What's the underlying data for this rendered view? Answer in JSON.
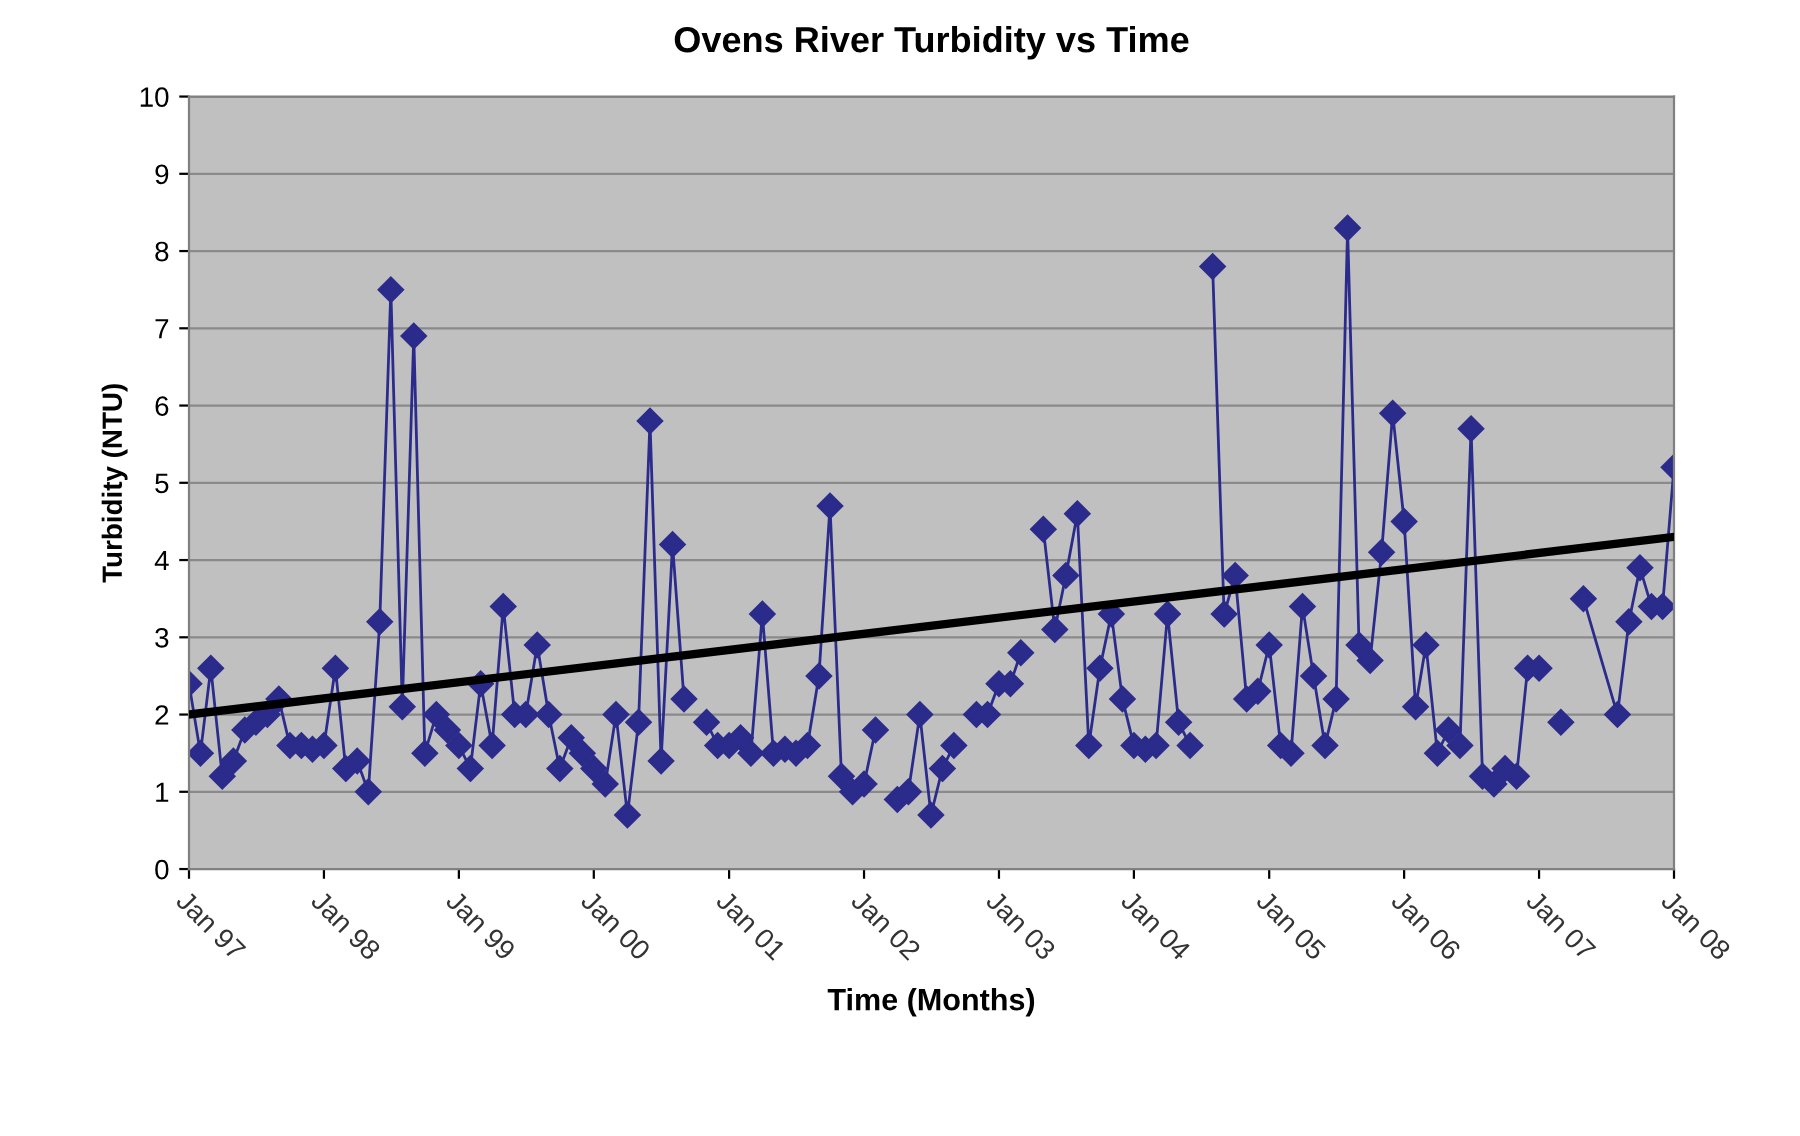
{
  "chart_data": {
    "type": "line",
    "title": "Ovens River Turbidity vs Time",
    "xlabel": "Time (Months)",
    "ylabel": "Turbidity (NTU)",
    "xlim": [
      "1997-01",
      "2008-01"
    ],
    "xticks": [
      {
        "value": "1997-01",
        "label": "Jan 97"
      },
      {
        "value": "1998-01",
        "label": "Jan 98"
      },
      {
        "value": "1999-01",
        "label": "Jan 99"
      },
      {
        "value": "2000-01",
        "label": "Jan 00"
      },
      {
        "value": "2001-01",
        "label": "Jan 01"
      },
      {
        "value": "2002-01",
        "label": "Jan 02"
      },
      {
        "value": "2003-01",
        "label": "Jan 03"
      },
      {
        "value": "2004-01",
        "label": "Jan 04"
      },
      {
        "value": "2005-01",
        "label": "Jan 05"
      },
      {
        "value": "2006-01",
        "label": "Jan 06"
      },
      {
        "value": "2007-01",
        "label": "Jan 07"
      },
      {
        "value": "2008-01",
        "label": "Jan 08"
      }
    ],
    "ylim": [
      0,
      10
    ],
    "yticks": [
      0,
      1,
      2,
      3,
      4,
      5,
      6,
      7,
      8,
      9,
      10
    ],
    "grid": "y",
    "series": [
      {
        "color": "#2b2b8c",
        "marker": "diamond",
        "line_style": "solid",
        "x": [
          "1997-01",
          "1997-02",
          "1997-03",
          "1997-04",
          "1997-05",
          "1997-06",
          "1997-07",
          "1997-08",
          "1997-09",
          "1997-10",
          "1997-11",
          "1997-12",
          "1998-01",
          "1998-02",
          "1998-03",
          "1998-04",
          "1998-05",
          "1998-06",
          "1998-07",
          "1998-08",
          "1998-09",
          "1998-10",
          "1998-11",
          "1998-12",
          "1999-01",
          "1999-02",
          "1999-03",
          "1999-04",
          "1999-05",
          "1999-06",
          "1999-07",
          "1999-08",
          "1999-09",
          "1999-10",
          "1999-11",
          "1999-12",
          "2000-01",
          "2000-02",
          "2000-03",
          "2000-04",
          "2000-05",
          "2000-06",
          "2000-07",
          "2000-08",
          "2000-09",
          "2000-10",
          "2000-11",
          "2000-12",
          "2001-01",
          "2001-02",
          "2001-03",
          "2001-04",
          "2001-05",
          "2001-06",
          "2001-07",
          "2001-08",
          "2001-09",
          "2001-10",
          "2001-11",
          "2001-12",
          "2002-01",
          "2002-02",
          "2002-03",
          "2002-04",
          "2002-05",
          "2002-06",
          "2002-07",
          "2002-08",
          "2002-09",
          "2002-10",
          "2002-11",
          "2002-12",
          "2003-01",
          "2003-02",
          "2003-03",
          "2003-04",
          "2003-05",
          "2003-06",
          "2003-07",
          "2003-08",
          "2003-09",
          "2003-10",
          "2003-11",
          "2003-12",
          "2004-01",
          "2004-02",
          "2004-03",
          "2004-04",
          "2004-05",
          "2004-06",
          "2004-07",
          "2004-08",
          "2004-09",
          "2004-10",
          "2004-11",
          "2004-12",
          "2005-01",
          "2005-02",
          "2005-03",
          "2005-04",
          "2005-05",
          "2005-06",
          "2005-07",
          "2005-08",
          "2005-09",
          "2005-10",
          "2005-11",
          "2005-12",
          "2006-01",
          "2006-02",
          "2006-03",
          "2006-04",
          "2006-05",
          "2006-06",
          "2006-07",
          "2006-08",
          "2006-09",
          "2006-10",
          "2006-11",
          "2006-12",
          "2007-01",
          "2007-02",
          "2007-03",
          "2007-04",
          "2007-05",
          "2007-08",
          "2007-09",
          "2007-10",
          "2007-11",
          "2007-12",
          "2008-01"
        ],
        "values": [
          2.4,
          1.5,
          2.6,
          1.2,
          1.4,
          1.8,
          1.9,
          2.0,
          2.2,
          1.6,
          1.6,
          1.55,
          1.6,
          2.6,
          1.3,
          1.4,
          1.0,
          3.2,
          7.5,
          2.1,
          6.9,
          1.5,
          2.0,
          1.8,
          1.6,
          1.3,
          2.4,
          1.6,
          3.4,
          2.0,
          2.0,
          2.9,
          2.0,
          1.3,
          1.7,
          1.5,
          1.3,
          1.1,
          2.0,
          0.7,
          1.9,
          5.8,
          1.4,
          4.2,
          2.2,
          null,
          1.9,
          1.6,
          1.6,
          1.7,
          1.5,
          3.3,
          1.5,
          1.55,
          1.5,
          1.6,
          2.5,
          4.7,
          1.2,
          1.0,
          1.1,
          1.8,
          null,
          0.9,
          1.0,
          2.0,
          0.7,
          1.3,
          1.6,
          null,
          2.0,
          2.0,
          2.4,
          2.4,
          2.8,
          null,
          4.4,
          3.1,
          3.8,
          4.6,
          1.6,
          2.6,
          3.3,
          2.2,
          1.6,
          1.55,
          1.6,
          3.3,
          1.9,
          1.6,
          null,
          7.8,
          3.3,
          3.8,
          2.2,
          2.3,
          2.9,
          1.6,
          1.5,
          3.4,
          2.5,
          1.6,
          2.2,
          8.3,
          2.9,
          2.7,
          4.1,
          5.9,
          4.5,
          2.1,
          2.9,
          1.5,
          1.8,
          1.6,
          5.7,
          1.2,
          1.1,
          1.3,
          1.2,
          2.6,
          2.6,
          null,
          1.9,
          null,
          3.5,
          2.0,
          3.2,
          3.9,
          3.4,
          3.4,
          5.2
        ]
      },
      {
        "type": "line",
        "color": "#000000",
        "marker": "none",
        "line_style": "solid",
        "x": [
          "1997-01",
          "2008-01"
        ],
        "values": [
          2.0,
          4.3
        ]
      }
    ]
  }
}
